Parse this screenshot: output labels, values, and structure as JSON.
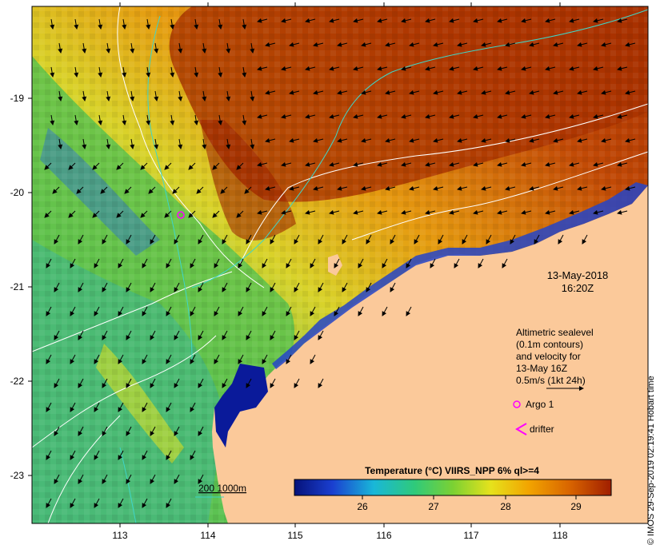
{
  "map": {
    "date": "13-May-2018",
    "time": "16:20Z",
    "legend_lines": [
      "Altimetric sealevel",
      "(0.1m contours)",
      "and velocity for",
      "13-May 16Z",
      "0.5m/s (1kt 24h)"
    ],
    "argo_label": "Argo 1",
    "drifter_label": "drifter",
    "depth_label": "200  1000m",
    "colorbar_title": "Temperature (°C) VIIRS_NPP 6% ql>=4",
    "colorbar_ticks": [
      "26",
      "27",
      "28",
      "29"
    ],
    "x_ticks": [
      "113",
      "114",
      "115",
      "116",
      "117",
      "118"
    ],
    "y_ticks": [
      "-19",
      "-20",
      "-21",
      "-22",
      "-23"
    ],
    "copyright": "© IMOS 29-Sep-2019 02:19:41 Hobart time",
    "colors": {
      "land": "#fbc99a",
      "warm": "#a42a00",
      "cool": "#0a1a9a",
      "contour": "#ffffff",
      "bathymetry": "#3fd6c8",
      "argo": "#ff00ff",
      "arrow": "#000000"
    }
  }
}
